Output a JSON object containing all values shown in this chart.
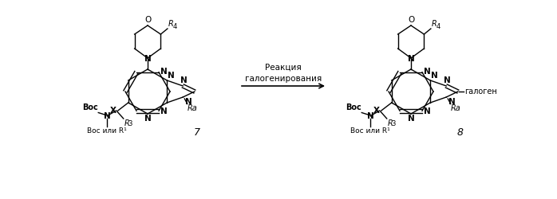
{
  "bg_color": "#ffffff",
  "arrow_text_line1": "Реакция",
  "arrow_text_line2": "галогенирования",
  "compound_num_left": "7",
  "compound_num_right": "8",
  "halogen_label": "галоген",
  "figsize": [
    6.98,
    2.5
  ],
  "dpi": 100
}
